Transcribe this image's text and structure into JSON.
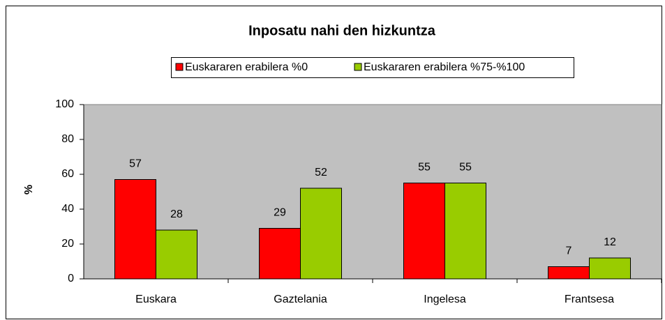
{
  "chart_data": {
    "type": "bar",
    "title": "Inposatu nahi den hizkuntza",
    "y_label": "%",
    "categories": [
      "Euskara",
      "Gaztelania",
      "Ingelesa",
      "Frantsesa"
    ],
    "series": [
      {
        "name": "Euskararen erabilera %0",
        "color": "#ff0000",
        "values": [
          57,
          29,
          55,
          7
        ]
      },
      {
        "name": "Euskararen erabilera %75-%100",
        "color": "#99cc00",
        "values": [
          28,
          52,
          55,
          12
        ]
      }
    ],
    "ylim": [
      0,
      100
    ],
    "yticks": [
      0,
      20,
      40,
      60,
      80,
      100
    ],
    "legend": "top",
    "grid": false
  }
}
